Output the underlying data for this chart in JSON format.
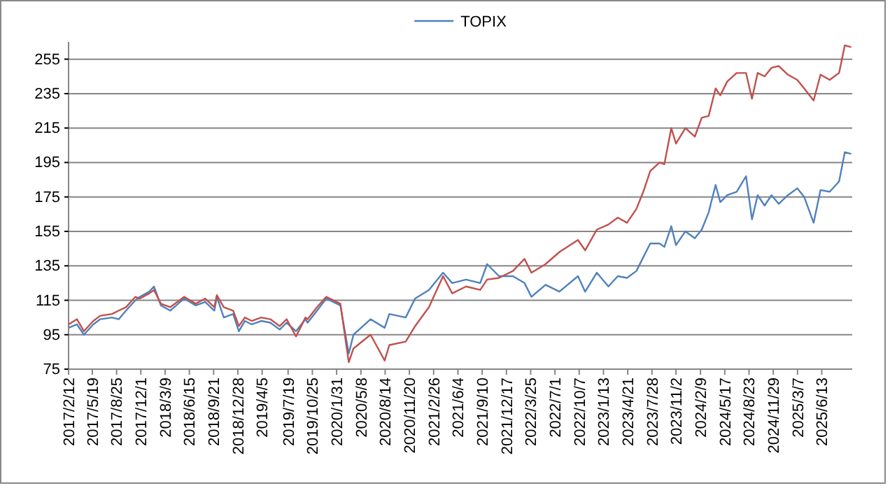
{
  "chart_data": {
    "type": "line",
    "legend": "top",
    "grid": "y",
    "ylim": [
      75,
      265
    ],
    "yticks": [
      75,
      95,
      115,
      135,
      155,
      175,
      195,
      215,
      235,
      255
    ],
    "xlim": [
      "2017-02-12",
      "2025-10-14"
    ],
    "xticks": [
      {
        "value": "2017-02-12",
        "label": "2017/2/12"
      },
      {
        "value": "2017-05-19",
        "label": "2017/5/19"
      },
      {
        "value": "2017-08-25",
        "label": "2017/8/25"
      },
      {
        "value": "2017-12-01",
        "label": "2017/12/1"
      },
      {
        "value": "2018-03-09",
        "label": "2018/3/9"
      },
      {
        "value": "2018-06-15",
        "label": "2018/6/15"
      },
      {
        "value": "2018-09-21",
        "label": "2018/9/21"
      },
      {
        "value": "2018-12-28",
        "label": "2018/12/28"
      },
      {
        "value": "2019-04-05",
        "label": "2019/4/5"
      },
      {
        "value": "2019-07-19",
        "label": "2019/7/19"
      },
      {
        "value": "2019-10-25",
        "label": "2019/10/25"
      },
      {
        "value": "2020-01-31",
        "label": "2020/1/31"
      },
      {
        "value": "2020-05-08",
        "label": "2020/5/8"
      },
      {
        "value": "2020-08-14",
        "label": "2020/8/14"
      },
      {
        "value": "2020-11-20",
        "label": "2020/11/20"
      },
      {
        "value": "2021-02-26",
        "label": "2021/2/26"
      },
      {
        "value": "2021-06-04",
        "label": "2021/6/4"
      },
      {
        "value": "2021-09-10",
        "label": "2021/9/10"
      },
      {
        "value": "2021-12-17",
        "label": "2021/12/17"
      },
      {
        "value": "2022-03-25",
        "label": "2022/3/25"
      },
      {
        "value": "2022-07-01",
        "label": "2022/7/1"
      },
      {
        "value": "2022-10-07",
        "label": "2022/10/7"
      },
      {
        "value": "2023-01-13",
        "label": "2023/1/13"
      },
      {
        "value": "2023-04-21",
        "label": "2023/4/21"
      },
      {
        "value": "2023-07-28",
        "label": "2023/7/28"
      },
      {
        "value": "2023-11-02",
        "label": "2023/11/2"
      },
      {
        "value": "2024-02-09",
        "label": "2024/2/9"
      },
      {
        "value": "2024-05-17",
        "label": "2024/5/17"
      },
      {
        "value": "2024-08-23",
        "label": "2024/8/23"
      },
      {
        "value": "2024-11-29",
        "label": "2024/11/29"
      },
      {
        "value": "2025-03-07",
        "label": "2025/3/7"
      },
      {
        "value": "2025-06-13",
        "label": "2025/6/13"
      }
    ],
    "x": [
      "2017-02-12",
      "2017-03-18",
      "2017-04-15",
      "2017-05-23",
      "2017-06-20",
      "2017-08-06",
      "2017-09-03",
      "2017-10-02",
      "2017-11-09",
      "2017-11-27",
      "2018-01-04",
      "2018-01-23",
      "2018-02-20",
      "2018-03-30",
      "2018-05-25",
      "2018-07-11",
      "2018-08-18",
      "2018-09-24",
      "2018-10-04",
      "2018-11-01",
      "2018-12-09",
      "2019-01-01",
      "2019-01-25",
      "2019-02-22",
      "2019-04-01",
      "2019-05-08",
      "2019-06-15",
      "2019-07-13",
      "2019-08-20",
      "2019-09-27",
      "2019-10-06",
      "2019-11-13",
      "2019-12-20",
      "2020-02-15",
      "2020-03-20",
      "2020-04-08",
      "2020-06-16",
      "2020-08-12",
      "2020-08-31",
      "2020-11-05",
      "2020-12-13",
      "2021-02-07",
      "2021-04-05",
      "2021-05-12",
      "2021-07-07",
      "2021-09-02",
      "2021-09-30",
      "2021-11-17",
      "2022-01-12",
      "2022-02-28",
      "2022-03-28",
      "2022-05-24",
      "2022-07-19",
      "2022-10-02",
      "2022-10-31",
      "2022-12-17",
      "2023-02-02",
      "2023-03-12",
      "2023-04-18",
      "2023-05-26",
      "2023-06-23",
      "2023-07-21",
      "2023-08-28",
      "2023-09-16",
      "2023-10-14",
      "2023-11-02",
      "2023-12-10",
      "2024-01-17",
      "2024-02-14",
      "2024-03-13",
      "2024-04-10",
      "2024-04-29",
      "2024-05-27",
      "2024-07-04",
      "2024-08-11",
      "2024-09-04",
      "2024-09-27",
      "2024-10-25",
      "2024-11-22",
      "2024-12-21",
      "2025-01-27",
      "2025-03-06",
      "2025-04-03",
      "2025-05-11",
      "2025-06-08",
      "2025-07-15",
      "2025-08-22",
      "2025-09-14",
      "2025-10-10"
    ],
    "series": [
      {
        "name": "TOPIX",
        "color": "#4f81bd",
        "values": [
          99,
          101,
          95,
          101,
          104,
          105,
          104,
          109,
          115,
          117,
          120,
          123,
          112,
          109,
          116,
          112,
          114,
          109,
          117,
          105,
          107,
          97,
          103,
          101,
          103,
          102,
          98,
          102,
          97,
          104,
          102,
          109,
          116,
          112,
          84,
          95,
          104,
          99,
          107,
          105,
          116,
          121,
          131,
          125,
          127,
          125,
          136,
          129,
          129,
          125,
          117,
          124,
          120,
          129,
          120,
          131,
          123,
          129,
          128,
          132,
          140,
          148,
          148,
          146,
          158,
          147,
          155,
          151,
          156,
          166,
          182,
          172,
          176,
          178,
          187,
          162,
          176,
          170,
          176,
          171,
          176,
          180,
          175,
          160,
          179,
          178,
          184,
          201,
          200
        ]
      },
      {
        "color": "#c0504d",
        "values": [
          101,
          104,
          97,
          103,
          106,
          107,
          109,
          111,
          117,
          116,
          119,
          121,
          113,
          111,
          117,
          113,
          116,
          111,
          118,
          111,
          109,
          100,
          105,
          103,
          105,
          104,
          100,
          104,
          94,
          105,
          104,
          111,
          117,
          113,
          79,
          87,
          95,
          80,
          89,
          91,
          100,
          111,
          129,
          119,
          123,
          121,
          127,
          128,
          132,
          139,
          131,
          136,
          143,
          150,
          144,
          156,
          159,
          163,
          160,
          168,
          178,
          190,
          195,
          194,
          215,
          206,
          215,
          210,
          221,
          222,
          238,
          234,
          242,
          247,
          247,
          232,
          247,
          245,
          250,
          251,
          246,
          243,
          238,
          231,
          246,
          243,
          247,
          263,
          262
        ]
      }
    ]
  }
}
